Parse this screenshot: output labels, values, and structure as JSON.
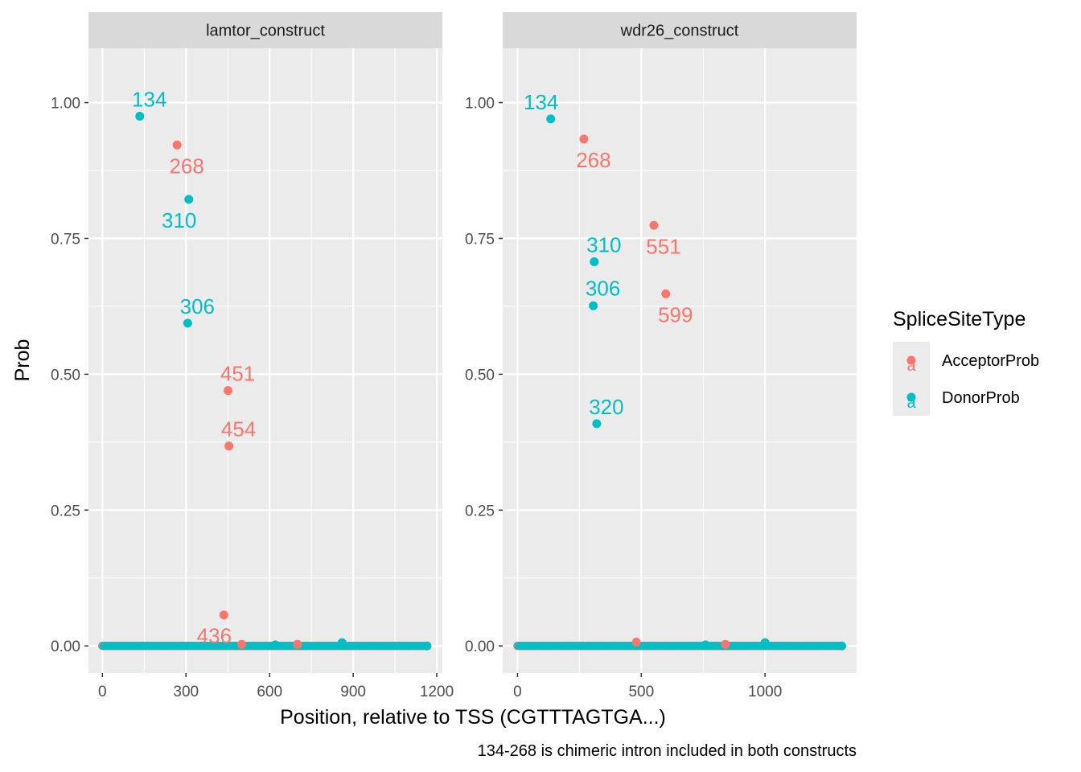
{
  "chart_data": {
    "type": "scatter",
    "facet_by": "construct",
    "x_label": "Position, relative to TSS (CGTTTAGTGA...)",
    "y_label": "Prob",
    "caption": "134-268 is chimeric intron included in both constructs",
    "legend": {
      "title": "SpliceSiteType",
      "placement": "right",
      "entries": [
        {
          "name": "AcceptorProb",
          "color": "#F8766D",
          "key_glyph": "a"
        },
        {
          "name": "DonorProb",
          "color": "#00BFC4",
          "key_glyph": "a"
        }
      ]
    },
    "y_ticks": [
      "0.00",
      "0.25",
      "0.50",
      "0.75",
      "1.00"
    ],
    "y_tick_values": [
      0,
      0.25,
      0.5,
      0.75,
      1.0
    ],
    "panels": [
      {
        "title": "lamtor_construct",
        "xlim": [
          -50,
          1220
        ],
        "ylim": [
          -0.05,
          1.1
        ],
        "x_ticks": [
          "0",
          "300",
          "600",
          "900",
          "1200"
        ],
        "x_tick_values": [
          0,
          300,
          600,
          900,
          1200
        ],
        "baseline_x_range": [
          0,
          1165
        ],
        "labeled_points": [
          {
            "series": "DonorProb",
            "x": 134,
            "y": 0.975,
            "label": "134",
            "label_pos": "above"
          },
          {
            "series": "AcceptorProb",
            "x": 268,
            "y": 0.922,
            "label": "268",
            "label_pos": "below"
          },
          {
            "series": "DonorProb",
            "x": 310,
            "y": 0.822,
            "label": "310",
            "label_pos": "below-left"
          },
          {
            "series": "DonorProb",
            "x": 306,
            "y": 0.594,
            "label": "306",
            "label_pos": "above"
          },
          {
            "series": "AcceptorProb",
            "x": 451,
            "y": 0.47,
            "label": "451",
            "label_pos": "above"
          },
          {
            "series": "AcceptorProb",
            "x": 454,
            "y": 0.368,
            "label": "454",
            "label_pos": "above"
          },
          {
            "series": "AcceptorProb",
            "x": 436,
            "y": 0.057,
            "label": "436",
            "label_pos": "below-left"
          }
        ],
        "small_points": [
          {
            "series": "AcceptorProb",
            "x": 500,
            "y": 0.003
          },
          {
            "series": "AcceptorProb",
            "x": 700,
            "y": 0.003
          },
          {
            "series": "DonorProb",
            "x": 620,
            "y": 0.002
          },
          {
            "series": "DonorProb",
            "x": 860,
            "y": 0.006
          }
        ]
      },
      {
        "title": "wdr26_construct",
        "xlim": [
          -60,
          1370
        ],
        "ylim": [
          -0.05,
          1.1
        ],
        "x_ticks": [
          "0",
          "500",
          "1000"
        ],
        "x_tick_values": [
          0,
          500,
          1000
        ],
        "baseline_x_range": [
          0,
          1310
        ],
        "labeled_points": [
          {
            "series": "DonorProb",
            "x": 134,
            "y": 0.97,
            "label": "134",
            "label_pos": "above-left"
          },
          {
            "series": "AcceptorProb",
            "x": 268,
            "y": 0.933,
            "label": "268",
            "label_pos": "below"
          },
          {
            "series": "AcceptorProb",
            "x": 551,
            "y": 0.774,
            "label": "551",
            "label_pos": "below"
          },
          {
            "series": "DonorProb",
            "x": 310,
            "y": 0.707,
            "label": "310",
            "label_pos": "above"
          },
          {
            "series": "AcceptorProb",
            "x": 599,
            "y": 0.648,
            "label": "599",
            "label_pos": "below"
          },
          {
            "series": "DonorProb",
            "x": 306,
            "y": 0.626,
            "label": "306",
            "label_pos": "above-right"
          },
          {
            "series": "DonorProb",
            "x": 320,
            "y": 0.409,
            "label": "320",
            "label_pos": "above"
          }
        ],
        "small_points": [
          {
            "series": "AcceptorProb",
            "x": 480,
            "y": 0.007
          },
          {
            "series": "AcceptorProb",
            "x": 840,
            "y": 0.003
          },
          {
            "series": "DonorProb",
            "x": 760,
            "y": 0.002
          },
          {
            "series": "DonorProb",
            "x": 1000,
            "y": 0.006
          }
        ]
      }
    ]
  }
}
